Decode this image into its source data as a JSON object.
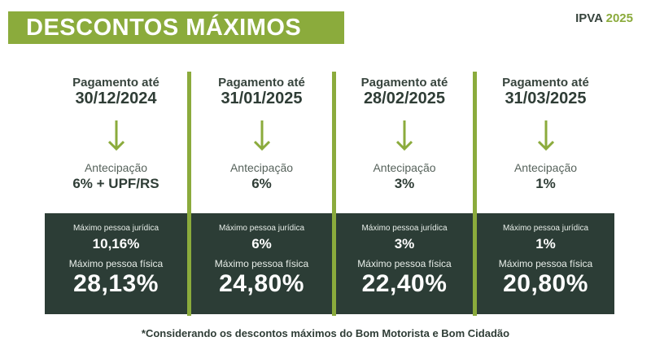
{
  "title": "DESCONTOS MÁXIMOS",
  "tag": {
    "prefix": "IPVA",
    "year": "2025"
  },
  "columns": [
    {
      "head": "Pagamento até",
      "date": "30/12/2024",
      "anticipation_label": "Antecipação",
      "anticipation_value": "6% + UPF/RS",
      "pj_label": "Máximo pessoa jurídica",
      "pj_value": "10,16%",
      "pf_label": "Máximo pessoa física",
      "pf_value": "28,13%"
    },
    {
      "head": "Pagamento até",
      "date": "31/01/2025",
      "anticipation_label": "Antecipação",
      "anticipation_value": "6%",
      "pj_label": "Máximo pessoa jurídica",
      "pj_value": "6%",
      "pf_label": "Máximo pessoa física",
      "pf_value": "24,80%"
    },
    {
      "head": "Pagamento até",
      "date": "28/02/2025",
      "anticipation_label": "Antecipação",
      "anticipation_value": "3%",
      "pj_label": "Máximo pessoa jurídica",
      "pj_value": "3%",
      "pf_label": "Máximo pessoa física",
      "pf_value": "22,40%"
    },
    {
      "head": "Pagamento até",
      "date": "31/03/2025",
      "anticipation_label": "Antecipação",
      "anticipation_value": "1%",
      "pj_label": "Máximo pessoa jurídica",
      "pj_value": "1%",
      "pf_label": "Máximo pessoa física",
      "pf_value": "20,80%"
    }
  ],
  "footnote": "*Considerando os descontos máximos do Bom Motorista e Bom Cidadão",
  "colors": {
    "accent": "#8bab3c",
    "dark": "#2c3d36",
    "text": "#2f3d36"
  }
}
